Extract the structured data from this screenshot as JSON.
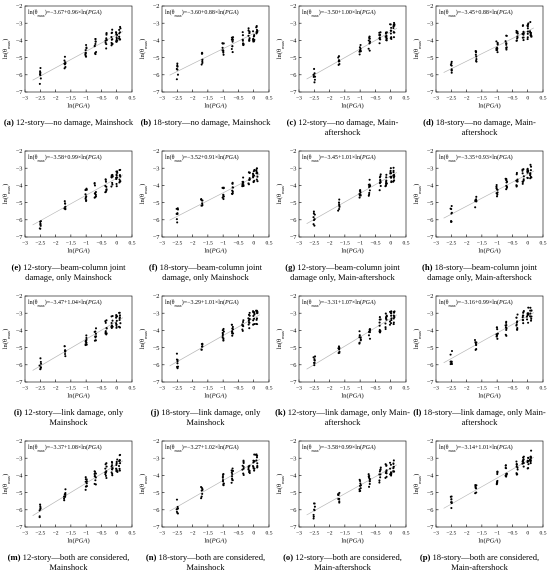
{
  "figure": {
    "panels": [
      {
        "id": "a",
        "label": "(a)",
        "caption": "12-story—no damage, Mainshock",
        "equation": "ln(θmax)=−3.67+0.96×ln(PGA)",
        "intercept": -3.67,
        "slope": 0.96,
        "xlabel": "ln(PGA)",
        "ylabel": "ln(θmax)"
      },
      {
        "id": "b",
        "label": "(b)",
        "caption": "18-story—no damage, Mainshock",
        "equation": "ln(θmax)=−3.60+0.88×ln(PGA)",
        "intercept": -3.6,
        "slope": 0.88,
        "xlabel": "ln(PGA)",
        "ylabel": "ln(θmax)"
      },
      {
        "id": "c",
        "label": "(c)",
        "caption": "12-story—no damage, Main-aftershock",
        "equation": "ln(θmax)=−3.50+1.00×ln(PGA)",
        "intercept": -3.5,
        "slope": 1.0,
        "xlabel": "ln(PGA)",
        "ylabel": "ln(θmax)"
      },
      {
        "id": "d",
        "label": "(d)",
        "caption": "18-story—no damage, Main-aftershock",
        "equation": "ln(θmax)=−3.45+0.88×ln(PGA)",
        "intercept": -3.45,
        "slope": 0.88,
        "xlabel": "ln(PGA)",
        "ylabel": "ln(θmax)"
      },
      {
        "id": "e",
        "label": "(e)",
        "caption": "12-story—beam-column joint damage, only Mainshock",
        "equation": "ln(θmax)=−3.58+0.99×ln(PGA)",
        "intercept": -3.58,
        "slope": 0.99,
        "xlabel": "ln(PGA)",
        "ylabel": "ln(θmax)"
      },
      {
        "id": "f",
        "label": "(f)",
        "caption": "18-story—beam-column joint damage, only Mainshock",
        "equation": "ln(θmax)=−3.52+0.91×ln(PGA)",
        "intercept": -3.52,
        "slope": 0.91,
        "xlabel": "ln(PGA)",
        "ylabel": "ln(θmax)"
      },
      {
        "id": "g",
        "label": "(g)",
        "caption": "12-story—beam-column joint damage only, Main-aftershock",
        "equation": "ln(θmax)=−3.45+1.01×ln(PGA)",
        "intercept": -3.45,
        "slope": 1.01,
        "xlabel": "ln(PGA)",
        "ylabel": "ln(θmax)"
      },
      {
        "id": "h",
        "label": "(h)",
        "caption": "18-story—beam-column joint damage only, Main-aftershock",
        "equation": "ln(θmax)=−3.35+0.93×ln(PGA)",
        "intercept": -3.35,
        "slope": 0.93,
        "xlabel": "ln(PGA)",
        "ylabel": "ln(θmax)"
      },
      {
        "id": "i",
        "label": "(i)",
        "caption": "12-story—link damage, only Mainshock",
        "equation": "ln(θmax)=−3.47+1.04×ln(PGA)",
        "intercept": -3.47,
        "slope": 1.04,
        "xlabel": "ln(PGA)",
        "ylabel": "ln(θmax)"
      },
      {
        "id": "j",
        "label": "(j)",
        "caption": "18-story—link damage, only Mainshock",
        "equation": "ln(θmax)=−3.29+1.01×ln(PGA)",
        "intercept": -3.29,
        "slope": 1.01,
        "xlabel": "ln(PGA)",
        "ylabel": "ln(θmax)"
      },
      {
        "id": "k",
        "label": "(k)",
        "caption": "12-story—link damage, only Main-aftershock",
        "equation": "ln(θmax)=−3.31+1.07×ln(PGA)",
        "intercept": -3.31,
        "slope": 1.07,
        "xlabel": "ln(PGA)",
        "ylabel": "ln(θmax)"
      },
      {
        "id": "l",
        "label": "(l)",
        "caption": "18-story—link damage, only Main-aftershock",
        "equation": "ln(θmax)=−3.16+0.99×ln(PGA)",
        "intercept": -3.16,
        "slope": 0.99,
        "xlabel": "ln(PGA)",
        "ylabel": "ln(θmax)"
      },
      {
        "id": "m",
        "label": "(m)",
        "caption": "12-story—both are considered, Mainshock",
        "equation": "ln(θmax)=−3.37+1.08×ln(PGA)",
        "intercept": -3.37,
        "slope": 1.08,
        "xlabel": "ln(PGA)",
        "ylabel": "ln(θmax)"
      },
      {
        "id": "n",
        "label": "(n)",
        "caption": "18-story—both are considered, Mainshock",
        "equation": "ln(θmax)=−3.27+1.02×ln(PGA)",
        "intercept": -3.27,
        "slope": 1.02,
        "xlabel": "ln(PGA)",
        "ylabel": "ln(θmax)"
      },
      {
        "id": "o",
        "label": "(o)",
        "caption": "12-story—both are considered, Main-aftershock",
        "equation": "ln(θmax)=−3.58+0.99×ln(PGA)",
        "intercept": -3.58,
        "slope": 0.99,
        "xlabel": "ln(PGA)",
        "ylabel": "ln(θmax)"
      },
      {
        "id": "p",
        "label": "(p)",
        "caption": "18-story—both are considered, Main-aftershock",
        "equation": "ln(θmax)=−3.14+1.01×ln(PGA)",
        "intercept": -3.14,
        "slope": 1.01,
        "xlabel": "ln(PGA)",
        "ylabel": "ln(θmax)"
      }
    ]
  },
  "chart_data": [
    {
      "type": "scatter",
      "panel": "a",
      "x_ticks": [
        -3.0,
        -2.5,
        -2.0,
        -1.5,
        -1.0,
        -0.5,
        0.0,
        0.5
      ],
      "y_ticks": [
        -7,
        -6,
        -5,
        -4,
        -3,
        -2
      ],
      "xlim": [
        -3.0,
        0.5
      ],
      "ylim": [
        -7,
        -2
      ],
      "x_levels": [
        -2.5,
        -1.7,
        -1.0,
        -0.7,
        -0.35,
        -0.15,
        0.0,
        0.1
      ],
      "regression": {
        "intercept": -3.67,
        "slope": 0.96
      }
    },
    {
      "type": "scatter",
      "panel": "b",
      "x_ticks": [
        -3.0,
        -2.5,
        -2.0,
        -1.5,
        -1.0,
        -0.5,
        0.0,
        0.5
      ],
      "y_ticks": [
        -7,
        -6,
        -5,
        -4,
        -3,
        -2
      ],
      "xlim": [
        -3.0,
        0.5
      ],
      "ylim": [
        -7,
        -2
      ],
      "x_levels": [
        -2.5,
        -1.7,
        -1.0,
        -0.7,
        -0.35,
        -0.15,
        0.0,
        0.1
      ],
      "regression": {
        "intercept": -3.6,
        "slope": 0.88
      }
    },
    {
      "type": "scatter",
      "panel": "c",
      "x_ticks": [
        -3.0,
        -2.5,
        -2.0,
        -1.5,
        -1.0,
        -0.5,
        0.0,
        0.5
      ],
      "y_ticks": [
        -7,
        -6,
        -5,
        -4,
        -3,
        -2
      ],
      "xlim": [
        -3.0,
        0.5
      ],
      "ylim": [
        -7,
        -2
      ],
      "x_levels": [
        -2.5,
        -1.7,
        -1.0,
        -0.7,
        -0.35,
        -0.15,
        0.0,
        0.1
      ],
      "regression": {
        "intercept": -3.5,
        "slope": 1.0
      }
    },
    {
      "type": "scatter",
      "panel": "d",
      "x_ticks": [
        -3.0,
        -2.5,
        -2.0,
        -1.5,
        -1.0,
        -0.5,
        0.0,
        0.5
      ],
      "y_ticks": [
        -7,
        -6,
        -5,
        -4,
        -3,
        -2
      ],
      "xlim": [
        -3.0,
        0.5
      ],
      "ylim": [
        -7,
        -2
      ],
      "x_levels": [
        -2.5,
        -1.7,
        -1.0,
        -0.7,
        -0.35,
        -0.15,
        0.0,
        0.1
      ],
      "regression": {
        "intercept": -3.45,
        "slope": 0.88
      }
    },
    {
      "type": "scatter",
      "panel": "e",
      "x_ticks": [
        -3.0,
        -2.5,
        -2.0,
        -1.5,
        -1.0,
        -0.5,
        0.0,
        0.5
      ],
      "y_ticks": [
        -7,
        -6,
        -5,
        -4,
        -3,
        -2
      ],
      "xlim": [
        -3.0,
        0.5
      ],
      "ylim": [
        -7,
        -2
      ],
      "x_levels": [
        -2.5,
        -1.7,
        -1.0,
        -0.7,
        -0.35,
        -0.15,
        0.0,
        0.1
      ],
      "regression": {
        "intercept": -3.58,
        "slope": 0.99
      }
    },
    {
      "type": "scatter",
      "panel": "f",
      "x_ticks": [
        -3.0,
        -2.5,
        -2.0,
        -1.5,
        -1.0,
        -0.5,
        0.0,
        0.5
      ],
      "y_ticks": [
        -7,
        -6,
        -5,
        -4,
        -3,
        -2
      ],
      "xlim": [
        -3.0,
        0.5
      ],
      "ylim": [
        -7,
        -2
      ],
      "x_levels": [
        -2.5,
        -1.7,
        -1.0,
        -0.7,
        -0.35,
        -0.15,
        0.0,
        0.1
      ],
      "regression": {
        "intercept": -3.52,
        "slope": 0.91
      }
    },
    {
      "type": "scatter",
      "panel": "g",
      "x_ticks": [
        -3.0,
        -2.5,
        -2.0,
        -1.5,
        -1.0,
        -0.5,
        0.0,
        0.5
      ],
      "y_ticks": [
        -7,
        -6,
        -5,
        -4,
        -3,
        -2
      ],
      "xlim": [
        -3.0,
        0.5
      ],
      "ylim": [
        -7,
        -2
      ],
      "x_levels": [
        -2.5,
        -1.7,
        -1.0,
        -0.7,
        -0.35,
        -0.15,
        0.0,
        0.1
      ],
      "regression": {
        "intercept": -3.45,
        "slope": 1.01
      }
    },
    {
      "type": "scatter",
      "panel": "h",
      "x_ticks": [
        -3.0,
        -2.5,
        -2.0,
        -1.5,
        -1.0,
        -0.5,
        0.0,
        0.5
      ],
      "y_ticks": [
        -7,
        -6,
        -5,
        -4,
        -3,
        -2
      ],
      "xlim": [
        -3.0,
        0.5
      ],
      "ylim": [
        -7,
        -2
      ],
      "x_levels": [
        -2.5,
        -1.7,
        -1.0,
        -0.7,
        -0.35,
        -0.15,
        0.0,
        0.1
      ],
      "regression": {
        "intercept": -3.35,
        "slope": 0.93
      }
    },
    {
      "type": "scatter",
      "panel": "i",
      "x_ticks": [
        -3.0,
        -2.5,
        -2.0,
        -1.5,
        -1.0,
        -0.5,
        0.0,
        0.5
      ],
      "y_ticks": [
        -7,
        -6,
        -5,
        -4,
        -3,
        -2
      ],
      "xlim": [
        -3.0,
        0.5
      ],
      "ylim": [
        -7,
        -2
      ],
      "x_levels": [
        -2.5,
        -1.7,
        -1.0,
        -0.7,
        -0.35,
        -0.15,
        0.0,
        0.1
      ],
      "regression": {
        "intercept": -3.47,
        "slope": 1.04
      }
    },
    {
      "type": "scatter",
      "panel": "j",
      "x_ticks": [
        -3.0,
        -2.5,
        -2.0,
        -1.5,
        -1.0,
        -0.5,
        0.0,
        0.5
      ],
      "y_ticks": [
        -7,
        -6,
        -5,
        -4,
        -3,
        -2
      ],
      "xlim": [
        -3.0,
        0.5
      ],
      "ylim": [
        -7,
        -2
      ],
      "x_levels": [
        -2.5,
        -1.7,
        -1.0,
        -0.7,
        -0.35,
        -0.15,
        0.0,
        0.1
      ],
      "regression": {
        "intercept": -3.29,
        "slope": 1.01
      }
    },
    {
      "type": "scatter",
      "panel": "k",
      "x_ticks": [
        -3.0,
        -2.5,
        -2.0,
        -1.5,
        -1.0,
        -0.5,
        0.0,
        0.5
      ],
      "y_ticks": [
        -7,
        -6,
        -5,
        -4,
        -3,
        -2
      ],
      "xlim": [
        -3.0,
        0.5
      ],
      "ylim": [
        -7,
        -2
      ],
      "x_levels": [
        -2.5,
        -1.7,
        -1.0,
        -0.7,
        -0.35,
        -0.15,
        0.0,
        0.1
      ],
      "regression": {
        "intercept": -3.31,
        "slope": 1.07
      }
    },
    {
      "type": "scatter",
      "panel": "l",
      "x_ticks": [
        -3.0,
        -2.5,
        -2.0,
        -1.5,
        -1.0,
        -0.5,
        0.0,
        0.5
      ],
      "y_ticks": [
        -7,
        -6,
        -5,
        -4,
        -3,
        -2
      ],
      "xlim": [
        -3.0,
        0.5
      ],
      "ylim": [
        -7,
        -2
      ],
      "x_levels": [
        -2.5,
        -1.7,
        -1.0,
        -0.7,
        -0.35,
        -0.15,
        0.0,
        0.1
      ],
      "regression": {
        "intercept": -3.16,
        "slope": 0.99
      }
    },
    {
      "type": "scatter",
      "panel": "m",
      "x_ticks": [
        -3.0,
        -2.5,
        -2.0,
        -1.5,
        -1.0,
        -0.5,
        0.0,
        0.5
      ],
      "y_ticks": [
        -7,
        -6,
        -5,
        -4,
        -3,
        -2
      ],
      "xlim": [
        -3.0,
        0.5
      ],
      "ylim": [
        -7,
        -2
      ],
      "x_levels": [
        -2.5,
        -1.7,
        -1.0,
        -0.7,
        -0.35,
        -0.15,
        0.0,
        0.1
      ],
      "regression": {
        "intercept": -3.37,
        "slope": 1.08
      }
    },
    {
      "type": "scatter",
      "panel": "n",
      "x_ticks": [
        -3.0,
        -2.5,
        -2.0,
        -1.5,
        -1.0,
        -0.5,
        0.0,
        0.5
      ],
      "y_ticks": [
        -7,
        -6,
        -5,
        -4,
        -3,
        -2
      ],
      "xlim": [
        -3.0,
        0.5
      ],
      "ylim": [
        -7,
        -2
      ],
      "x_levels": [
        -2.5,
        -1.7,
        -1.0,
        -0.7,
        -0.35,
        -0.15,
        0.0,
        0.1
      ],
      "regression": {
        "intercept": -3.27,
        "slope": 1.02
      }
    },
    {
      "type": "scatter",
      "panel": "o",
      "x_ticks": [
        -3.0,
        -2.5,
        -2.0,
        -1.5,
        -1.0,
        -0.5,
        0.0,
        0.5
      ],
      "y_ticks": [
        -7,
        -6,
        -5,
        -4,
        -3,
        -2
      ],
      "xlim": [
        -3.0,
        0.5
      ],
      "ylim": [
        -7,
        -2
      ],
      "x_levels": [
        -2.5,
        -1.7,
        -1.0,
        -0.7,
        -0.35,
        -0.15,
        0.0,
        0.1
      ],
      "regression": {
        "intercept": -3.58,
        "slope": 0.99
      }
    },
    {
      "type": "scatter",
      "panel": "p",
      "x_ticks": [
        -3.0,
        -2.5,
        -2.0,
        -1.5,
        -1.0,
        -0.5,
        0.0,
        0.5
      ],
      "y_ticks": [
        -7,
        -6,
        -5,
        -4,
        -3,
        -2
      ],
      "xlim": [
        -3.0,
        0.5
      ],
      "ylim": [
        -7,
        -2
      ],
      "x_levels": [
        -2.5,
        -1.7,
        -1.0,
        -0.7,
        -0.35,
        -0.15,
        0.0,
        0.1
      ],
      "regression": {
        "intercept": -3.14,
        "slope": 1.01
      }
    }
  ]
}
